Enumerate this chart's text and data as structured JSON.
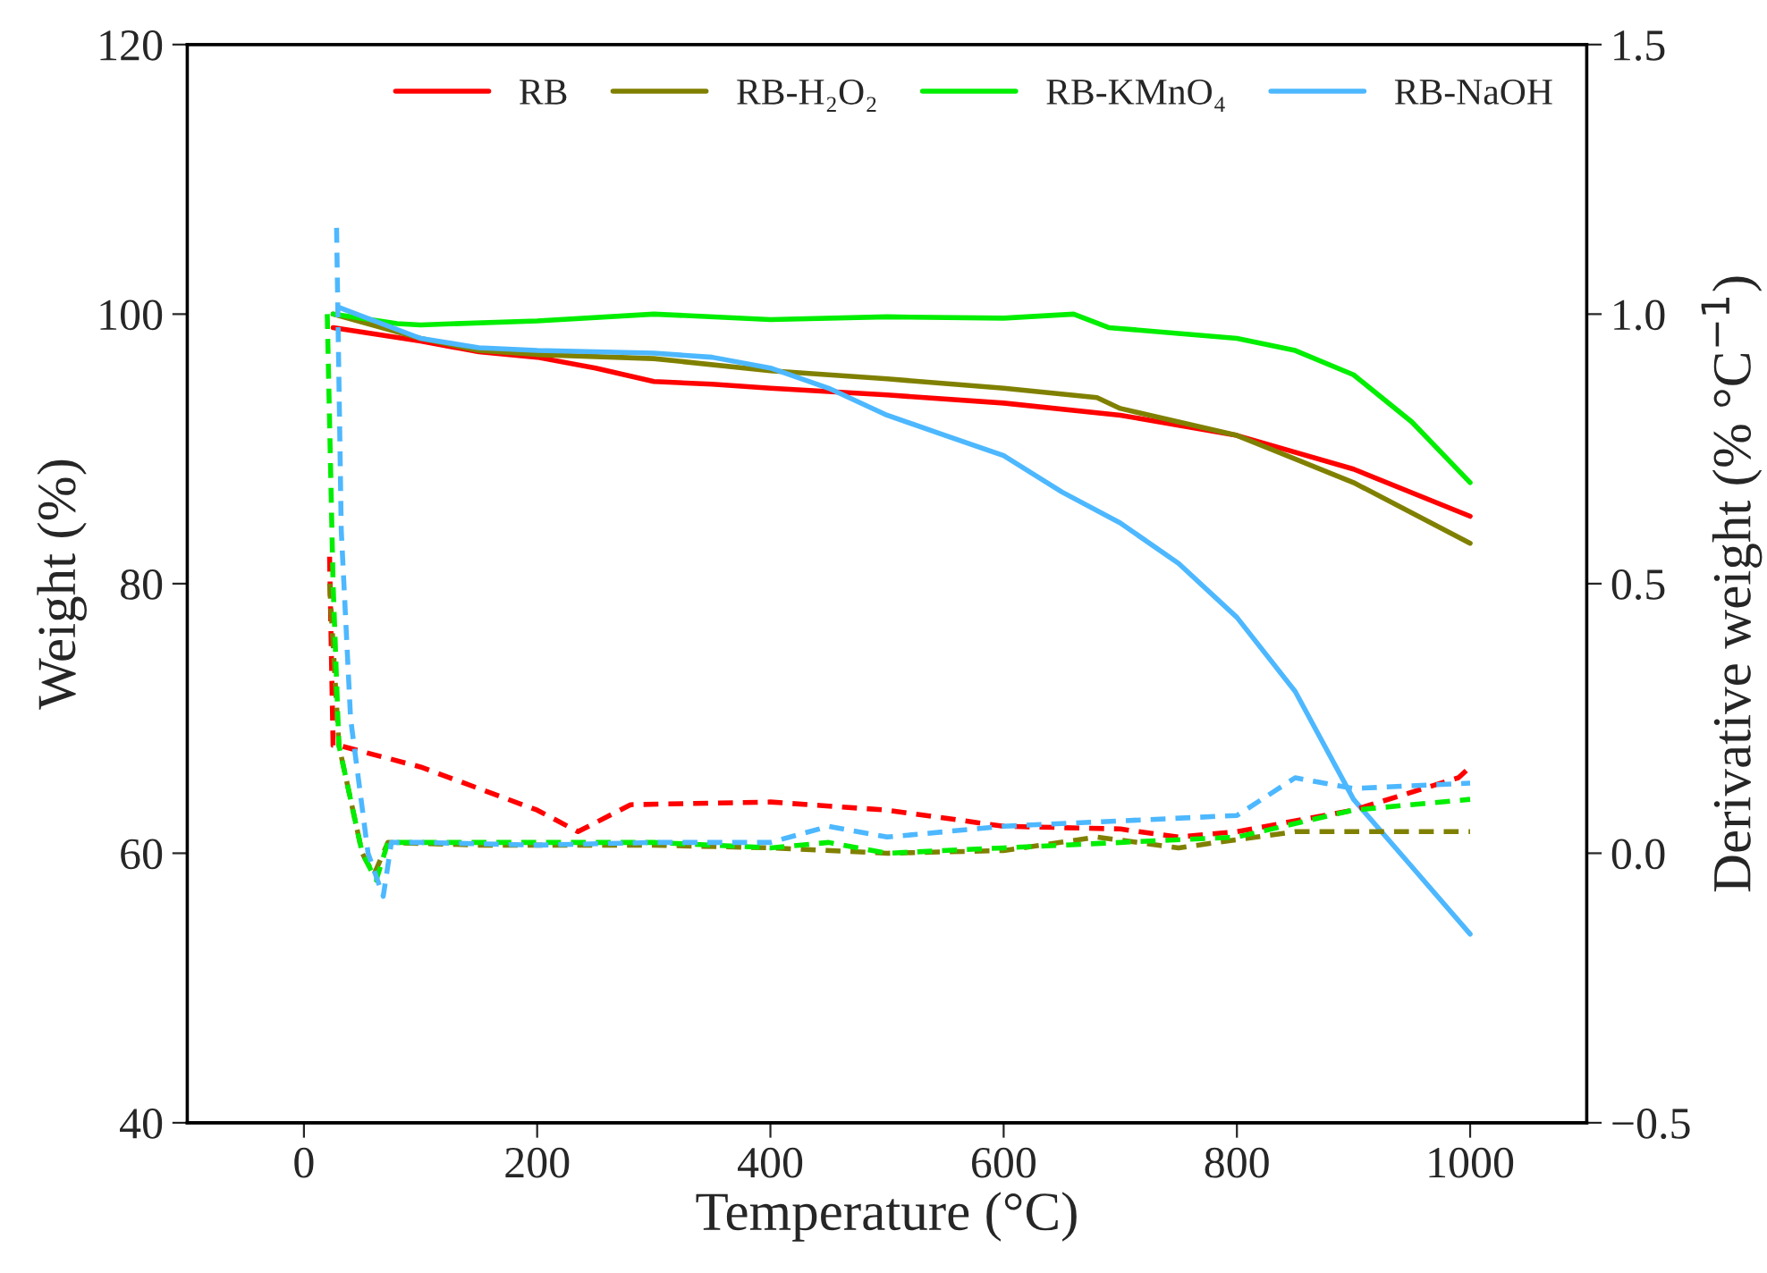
{
  "chart_data": {
    "type": "line",
    "xlabel": "Temperature (°C)",
    "ylabel": "Weight (%)",
    "y2label": "Derivative weight (% °C$^{−1}$)",
    "xlim": [
      -100,
      1100
    ],
    "xticks": [
      0,
      200,
      400,
      600,
      800,
      1000
    ],
    "ylim": [
      40,
      120
    ],
    "yticks": [
      40,
      60,
      80,
      100,
      120
    ],
    "y2lim": [
      -0.5,
      1.5
    ],
    "y2ticks": [
      {
        "value": -0.5,
        "label": "−0.5"
      },
      {
        "value": 0,
        "label": "0.0"
      },
      0.5,
      {
        "value": 1,
        "label": "1.0"
      },
      1.5
    ],
    "legend": "top right",
    "grid": false,
    "marker": "none",
    "series": [
      {
        "name": "RB",
        "color": "#ff0000",
        "line_style": "solid",
        "x": [
          25,
          100,
          150,
          200,
          250,
          300,
          350,
          400,
          500,
          600,
          700,
          800,
          900,
          1000
        ],
        "values": [
          99,
          98,
          97.2,
          96.8,
          96,
          95,
          94.8,
          94.5,
          94,
          93.4,
          92.5,
          91,
          88.5,
          85
        ]
      },
      {
        "name": "RB-H₂O₂",
        "color": "#808000",
        "line_style": "solid",
        "x": [
          25,
          100,
          150,
          200,
          300,
          400,
          500,
          600,
          680,
          700,
          800,
          900,
          1000
        ],
        "values": [
          100,
          98.2,
          97.3,
          97,
          96.7,
          95.8,
          95.2,
          94.5,
          93.8,
          93,
          91,
          87.5,
          83
        ]
      },
      {
        "name": "RB-KMnO₄",
        "color": "#00ee00",
        "line_style": "solid",
        "x": [
          25,
          80,
          100,
          200,
          300,
          400,
          500,
          600,
          660,
          690,
          800,
          850,
          900,
          950,
          1000
        ],
        "values": [
          100,
          99.3,
          99.2,
          99.5,
          100,
          99.6,
          99.8,
          99.7,
          100,
          99,
          98.2,
          97.3,
          95.5,
          92,
          87.5
        ]
      },
      {
        "name": "RB-NaOH",
        "color": "#4db8ff",
        "line_style": "solid",
        "x": [
          30,
          100,
          150,
          200,
          300,
          350,
          400,
          450,
          500,
          550,
          600,
          650,
          700,
          750,
          800,
          850,
          900,
          950,
          1000
        ],
        "values": [
          100.5,
          98.2,
          97.5,
          97.3,
          97.1,
          96.8,
          96,
          94.5,
          92.5,
          91,
          89.5,
          86.8,
          84.5,
          81.5,
          77.5,
          72,
          64,
          59,
          54
        ]
      },
      {
        "color": "#ff0000",
        "line_style": "dashed",
        "axis": "y2",
        "x": [
          22,
          25,
          30,
          100,
          150,
          200,
          235,
          280,
          400,
          500,
          600,
          700,
          750,
          800,
          900,
          990,
          1000
        ],
        "values": [
          0.55,
          0.2,
          0.2,
          0.16,
          0.12,
          0.08,
          0.04,
          0.09,
          0.095,
          0.08,
          0.05,
          0.045,
          0.03,
          0.04,
          0.08,
          0.14,
          0.16
        ]
      },
      {
        "color": "#808000",
        "line_style": "dashed",
        "axis": "y2",
        "x": [
          22,
          30,
          50,
          60,
          72,
          150,
          300,
          400,
          500,
          600,
          680,
          750,
          850,
          900,
          1000
        ],
        "values": [
          0.5,
          0.2,
          0.0,
          -0.04,
          0.02,
          0.015,
          0.015,
          0.01,
          0.0,
          0.005,
          0.03,
          0.01,
          0.04,
          0.04,
          0.04
        ]
      },
      {
        "color": "#00ee00",
        "line_style": "dashed",
        "axis": "y2",
        "x": [
          20,
          25,
          30,
          50,
          62,
          72,
          100,
          200,
          300,
          400,
          450,
          500,
          600,
          700,
          800,
          900,
          1000
        ],
        "values": [
          1.0,
          0.5,
          0.2,
          0.0,
          -0.05,
          0.02,
          0.02,
          0.02,
          0.02,
          0.01,
          0.02,
          0.0,
          0.01,
          0.02,
          0.03,
          0.08,
          0.1
        ]
      },
      {
        "color": "#4db8ff",
        "line_style": "dashed",
        "axis": "y2",
        "x": [
          28,
          32,
          40,
          55,
          68,
          75,
          100,
          200,
          300,
          400,
          450,
          500,
          600,
          700,
          800,
          850,
          900,
          1000
        ],
        "values": [
          1.16,
          0.6,
          0.25,
          0.0,
          -0.08,
          0.02,
          0.02,
          0.015,
          0.02,
          0.02,
          0.05,
          0.03,
          0.05,
          0.06,
          0.07,
          0.14,
          0.12,
          0.13
        ]
      }
    ]
  }
}
